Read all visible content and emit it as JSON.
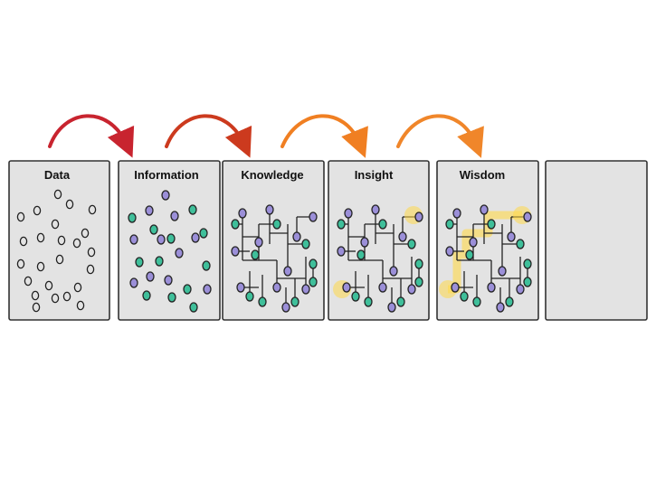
{
  "panels": [
    {
      "title": "Data"
    },
    {
      "title": "Information"
    },
    {
      "title": "Knowledge"
    },
    {
      "title": "Insight"
    },
    {
      "title": "Wisdom"
    },
    {
      "title": ""
    }
  ],
  "colors": {
    "panel_fill": "#e3e3e3",
    "panel_stroke": "#333333",
    "dot_green": "#3fbf9a",
    "dot_purple": "#9b8fd8",
    "highlight": "#ffd84a",
    "arrow_1": "#c8242f",
    "arrow_2": "#cc3a1e",
    "arrow_3": "#f07f22",
    "arrow_4": "#f0862a"
  },
  "arrows": [
    {
      "from_panel": 0,
      "to_panel": 1,
      "color_key": "arrow_1"
    },
    {
      "from_panel": 1,
      "to_panel": 2,
      "color_key": "arrow_2"
    },
    {
      "from_panel": 2,
      "to_panel": 3,
      "color_key": "arrow_3"
    },
    {
      "from_panel": 3,
      "to_panel": 4,
      "color_key": "arrow_4"
    }
  ]
}
